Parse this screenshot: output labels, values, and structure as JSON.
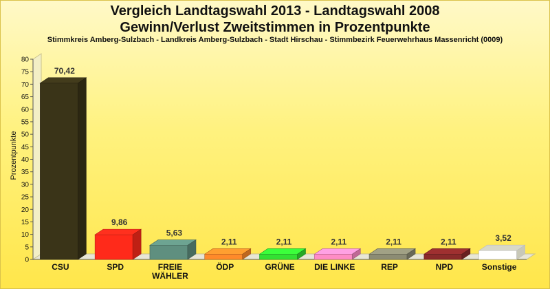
{
  "chart_data": {
    "type": "bar",
    "title_line1": "Vergleich Landtagswahl 2013 - Landtagswahl 2008",
    "title_line2": "Gewinn/Verlust Zweitstimmen in Prozentpunkte",
    "subtitle": "Stimmkreis Amberg-Sulzbach - Landkreis Amberg-Sulzbach - Stadt Hirschau - Stimmbezirk Feuerwehrhaus Massenricht (0009)",
    "ylabel": "Prozentpunkte",
    "xlabel": "",
    "ylim": [
      0,
      80
    ],
    "ytick_step": 5,
    "grid": false,
    "legend": "none",
    "categories": [
      "CSU",
      "SPD",
      "FREIE WÄHLER",
      "ÖDP",
      "GRÜNE",
      "DIE LINKE",
      "REP",
      "NPD",
      "Sonstige"
    ],
    "category_lines": [
      [
        "CSU"
      ],
      [
        "SPD"
      ],
      [
        "FREIE",
        "WÄHLER"
      ],
      [
        "ÖDP"
      ],
      [
        "GRÜNE"
      ],
      [
        "DIE LINKE"
      ],
      [
        "REP"
      ],
      [
        "NPD"
      ],
      [
        "Sonstige"
      ]
    ],
    "values": [
      70.42,
      9.86,
      5.63,
      2.11,
      2.11,
      2.11,
      2.11,
      2.11,
      3.52
    ],
    "value_labels": [
      "70,42",
      "9,86",
      "5,63",
      "2,11",
      "2,11",
      "2,11",
      "2,11",
      "2,11",
      "3,52"
    ],
    "colors": [
      "#3a3418",
      "#ff2a1a",
      "#5f8f7f",
      "#ff8a2a",
      "#33e033",
      "#ff8cc6",
      "#8c8c74",
      "#8a2a2a",
      "#ffffff"
    ]
  }
}
